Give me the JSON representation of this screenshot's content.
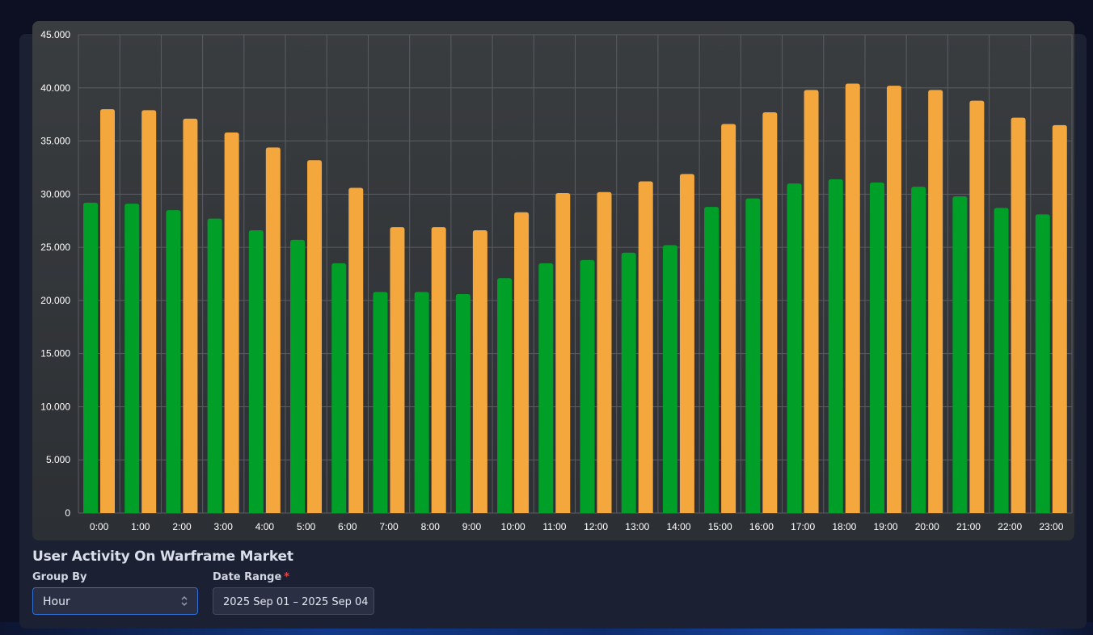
{
  "page": {
    "title": "User Activity On Warframe Market",
    "group_by": {
      "label": "Group By",
      "value": "Hour"
    },
    "date_range": {
      "label": "Date Range",
      "required_mark": "*",
      "value": "2025 Sep 01 – 2025 Sep 04"
    }
  },
  "colors": {
    "series_1": "#00a028",
    "series_2": "#f3a73c",
    "grid": "#5a5d62",
    "tick": "#ffffff"
  },
  "chart_data": {
    "type": "bar",
    "categories": [
      "0:00",
      "1:00",
      "2:00",
      "3:00",
      "4:00",
      "5:00",
      "6:00",
      "7:00",
      "8:00",
      "9:00",
      "10:00",
      "11:00",
      "12:00",
      "13:00",
      "14:00",
      "15:00",
      "16:00",
      "17:00",
      "18:00",
      "19:00",
      "20:00",
      "21:00",
      "22:00",
      "23:00"
    ],
    "series": [
      {
        "values": [
          29200,
          29100,
          28500,
          27700,
          26600,
          25700,
          23500,
          20800,
          20800,
          20600,
          22100,
          23500,
          23800,
          24500,
          25200,
          28800,
          29600,
          31000,
          31400,
          31100,
          30700,
          29800,
          28700,
          28100
        ]
      },
      {
        "values": [
          38000,
          37900,
          37100,
          35800,
          34400,
          33200,
          30600,
          26900,
          26900,
          26600,
          28300,
          30100,
          30200,
          31200,
          31900,
          36600,
          37700,
          39800,
          40400,
          40200,
          39800,
          38800,
          37200,
          36500
        ]
      }
    ],
    "ylim": [
      0,
      45000
    ],
    "yticks": [
      "0",
      "5.000",
      "10.000",
      "15.000",
      "20.000",
      "25.000",
      "30.000",
      "35.000",
      "40.000",
      "45.000"
    ],
    "grid": true,
    "legend": "none"
  }
}
